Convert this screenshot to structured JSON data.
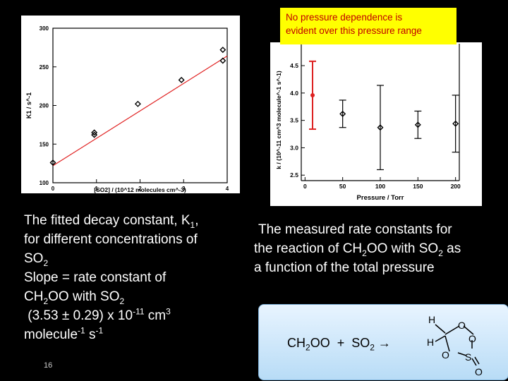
{
  "note": {
    "line1": "No pressure dependence is",
    "line2": "evident over this pressure range"
  },
  "chart_data": [
    {
      "type": "scatter",
      "title": "",
      "xlabel": "[SO2] / (10^12 molecules cm^-3)",
      "ylabel": "K1 / s^-1",
      "xlim": [
        0,
        4
      ],
      "ylim": [
        100,
        300
      ],
      "xticks": [
        "0",
        "1",
        "2",
        "3",
        "4"
      ],
      "yticks": [
        "100",
        "150",
        "200",
        "250",
        "300"
      ],
      "x": [
        0.0,
        0.95,
        0.95,
        1.95,
        2.95,
        3.9,
        3.9
      ],
      "y": [
        126,
        162,
        165,
        202,
        233,
        258,
        272
      ],
      "fit": {
        "x": [
          0,
          4
        ],
        "y": [
          122,
          264
        ]
      }
    },
    {
      "type": "scatter",
      "title": "",
      "xlabel": "Pressure / Torr",
      "ylabel": "k / (10^-11 cm^3 molecule^-1 s^-1)",
      "xlim": [
        -5,
        205
      ],
      "ylim": [
        2.4,
        4.9
      ],
      "xticks": [
        "0",
        "50",
        "100",
        "150",
        "200"
      ],
      "yticks": [
        "2.5",
        "3.0",
        "3.5",
        "4.0",
        "4.5"
      ],
      "series": [
        {
          "name": "red",
          "x": [
            10
          ],
          "y": [
            3.96
          ],
          "err": [
            0.62
          ],
          "color": "#dd2222"
        },
        {
          "name": "black",
          "x": [
            50,
            100,
            150,
            200
          ],
          "y": [
            3.62,
            3.37,
            3.42,
            3.44
          ],
          "err": [
            0.25,
            0.77,
            0.25,
            0.52
          ],
          "color": "#000000"
        }
      ]
    }
  ],
  "left_caption": {
    "l1": "The fitted decay constant, K",
    "l1_sub": "1",
    "l1_end": ",",
    "l2": "for different concentrations of",
    "l3": "SO",
    "l3_sub": "2",
    "l4": "Slope  = rate constant of",
    "l5": "CH",
    "l5_sub": "2",
    "l5_end": "OO with SO",
    "l5_sub2": "2",
    "l6": " (3.53 ± 0.29) x 10",
    "l6_sup": "-11",
    "l6_end": " cm",
    "l6_sup2": "3",
    "l7": "molecule",
    "l7_sup": "-1",
    "l7_mid": " s",
    "l7_sup2": "-1"
  },
  "right_caption": {
    "l1": "The measured rate constants for",
    "l2": "the reaction of CH",
    "l2_sub": "2",
    "l2_mid": "OO with SO",
    "l2_sub2": "2",
    "l2_end": " as",
    "l3": "a function of the total pressure"
  },
  "reaction": {
    "a": "CH",
    "a_sub": "2",
    "a_end": "OO  +  SO",
    "b_sub": "2",
    "arrow": " →"
  },
  "structure_atoms": {
    "h1": "H",
    "h2": "H",
    "o1": "O",
    "o2": "O",
    "o3": "O",
    "o4": "O",
    "s": "S"
  },
  "slide_number": "16"
}
